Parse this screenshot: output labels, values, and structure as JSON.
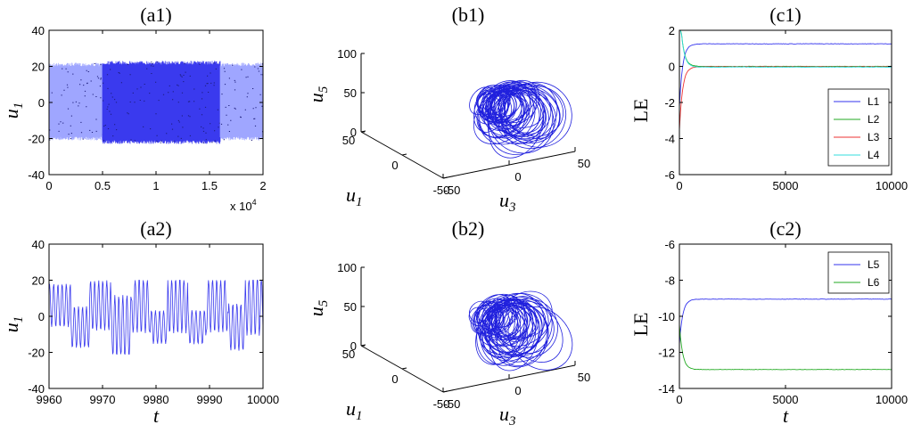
{
  "figure": {
    "panels": [
      {
        "id": "a1",
        "title": "(a1)"
      },
      {
        "id": "a2",
        "title": "(a2)"
      },
      {
        "id": "b1",
        "title": "(b1)"
      },
      {
        "id": "b2",
        "title": "(b2)"
      },
      {
        "id": "c1",
        "title": "(c1)"
      },
      {
        "id": "c2",
        "title": "(c2)"
      }
    ]
  },
  "chart_data": [
    {
      "id": "a1",
      "type": "line",
      "title": "(a1)",
      "ylabel": "u",
      "ylabel_sub": "1",
      "xlim": [
        0,
        20000
      ],
      "ylim": [
        -40,
        40
      ],
      "xticks": [
        "0",
        "0.5",
        "1",
        "1.5",
        "2"
      ],
      "yticks": [
        "40",
        "20",
        "0",
        "-20",
        "-40"
      ],
      "x_multiplier": "x 10",
      "x_multiplier_exp": "4",
      "series": [
        {
          "color": "#9fa6ff",
          "x_range": [
            0,
            5000
          ],
          "y_range": [
            -21,
            22
          ]
        },
        {
          "color": "#3a3aee",
          "x_range": [
            5000,
            16000
          ],
          "y_range": [
            -23,
            23
          ]
        },
        {
          "color": "#9fa6ff",
          "x_range": [
            16000,
            20000
          ],
          "y_range": [
            -21,
            22
          ]
        }
      ]
    },
    {
      "id": "a2",
      "type": "line",
      "title": "(a2)",
      "xlabel": "t",
      "ylabel": "u",
      "ylabel_sub": "1",
      "xlim": [
        9960,
        10000
      ],
      "ylim": [
        -40,
        40
      ],
      "xticks": [
        "9960",
        "9970",
        "9980",
        "9990",
        "10000"
      ],
      "yticks": [
        "40",
        "20",
        "0",
        "-20",
        "-40"
      ],
      "series": [
        {
          "color": "#3a3aee",
          "amplitude_range": [
            -21,
            20
          ]
        }
      ]
    },
    {
      "id": "b1",
      "type": "line",
      "title": "(b1)",
      "xlabel": "u",
      "xlabel_sub": "1",
      "ylabel": "u",
      "ylabel_sub": "3",
      "zlabel": "u",
      "zlabel_sub": "5",
      "zticks": [
        "100",
        "50",
        "0"
      ],
      "u1ticks": [
        "50",
        "0",
        "-50"
      ],
      "u3ticks": [
        "-50",
        "0",
        "50"
      ],
      "series": [
        {
          "color": "#2020dd"
        }
      ]
    },
    {
      "id": "b2",
      "type": "line",
      "title": "(b2)",
      "xlabel": "u",
      "xlabel_sub": "1",
      "ylabel": "u",
      "ylabel_sub": "3",
      "zlabel": "u",
      "zlabel_sub": "5",
      "zticks": [
        "100",
        "50",
        "0"
      ],
      "u1ticks": [
        "50",
        "0",
        "-50"
      ],
      "u3ticks": [
        "-50",
        "0",
        "50"
      ],
      "series": [
        {
          "color": "#2020dd"
        }
      ]
    },
    {
      "id": "c1",
      "type": "line",
      "title": "(c1)",
      "ylabel": "LE",
      "xlim": [
        0,
        10000
      ],
      "ylim": [
        -6,
        2
      ],
      "xticks": [
        "0",
        "5000",
        "10000"
      ],
      "yticks": [
        "2",
        "0",
        "-2",
        "-4",
        "-6"
      ],
      "legend": "right",
      "series": [
        {
          "name": "L1",
          "color": "#3333ee",
          "final": 1.25
        },
        {
          "name": "L2",
          "color": "#22aa22",
          "final": 0.0
        },
        {
          "name": "L3",
          "color": "#ee3333",
          "final": -0.02
        },
        {
          "name": "L4",
          "color": "#33dddd",
          "final": -0.04
        }
      ]
    },
    {
      "id": "c2",
      "type": "line",
      "title": "(c2)",
      "xlabel": "t",
      "ylabel": "LE",
      "xlim": [
        0,
        10000
      ],
      "ylim": [
        -14,
        -6
      ],
      "xticks": [
        "0",
        "5000",
        "10000"
      ],
      "yticks": [
        "-6",
        "-8",
        "-10",
        "-12",
        "-14"
      ],
      "legend": "top-right",
      "series": [
        {
          "name": "L5",
          "color": "#3333ee",
          "final": -9.05
        },
        {
          "name": "L6",
          "color": "#22aa22",
          "final": -12.95
        }
      ]
    }
  ]
}
